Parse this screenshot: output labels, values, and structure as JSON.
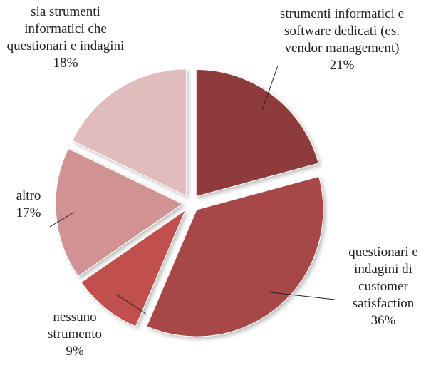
{
  "chart_data": {
    "type": "pie",
    "categories": [
      "strumenti informatici e software dedicati (es. vendor management)",
      "questionari e indagini di customer satisfaction",
      "nessuno strumento",
      "altro",
      "sia strumenti informatici che questionari e indagini"
    ],
    "values": [
      21,
      36,
      9,
      17,
      18
    ],
    "value_labels": [
      "21%",
      "36%",
      "9%",
      "17%",
      "18%"
    ],
    "colors": [
      "#8e3a3a",
      "#a84747",
      "#c0504d",
      "#d09292",
      "#e0bcbc"
    ]
  }
}
